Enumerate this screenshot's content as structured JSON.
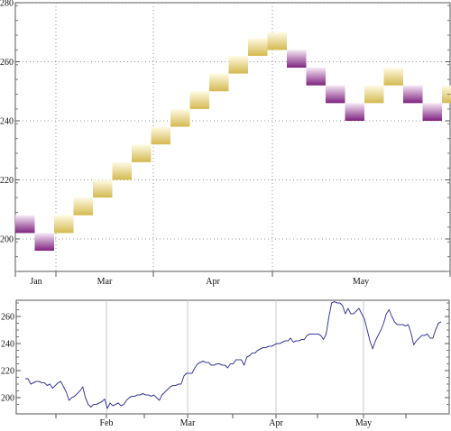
{
  "chart_data": [
    {
      "type": "renko",
      "yticks": [
        200,
        220,
        240,
        260,
        280
      ],
      "ylim": [
        189,
        280
      ],
      "month_labels": [
        "Jan",
        "Mar",
        "Apr",
        "May"
      ],
      "bricks": [
        {
          "dir": "down",
          "low": 202,
          "high": 208
        },
        {
          "dir": "down",
          "low": 196,
          "high": 202
        },
        {
          "dir": "up",
          "low": 202,
          "high": 208
        },
        {
          "dir": "up",
          "low": 208,
          "high": 214
        },
        {
          "dir": "up",
          "low": 214,
          "high": 220
        },
        {
          "dir": "up",
          "low": 220,
          "high": 226
        },
        {
          "dir": "up",
          "low": 226,
          "high": 232
        },
        {
          "dir": "up",
          "low": 232,
          "high": 238
        },
        {
          "dir": "up",
          "low": 238,
          "high": 244
        },
        {
          "dir": "up",
          "low": 244,
          "high": 250
        },
        {
          "dir": "up",
          "low": 250,
          "high": 256
        },
        {
          "dir": "up",
          "low": 256,
          "high": 262
        },
        {
          "dir": "up",
          "low": 262,
          "high": 268
        },
        {
          "dir": "up",
          "low": 264,
          "high": 270
        },
        {
          "dir": "down",
          "low": 258,
          "high": 264
        },
        {
          "dir": "down",
          "low": 252,
          "high": 258
        },
        {
          "dir": "down",
          "low": 246,
          "high": 252
        },
        {
          "dir": "down",
          "low": 240,
          "high": 246
        },
        {
          "dir": "up",
          "low": 246,
          "high": 252
        },
        {
          "dir": "up",
          "low": 252,
          "high": 258
        },
        {
          "dir": "down",
          "low": 246,
          "high": 252
        },
        {
          "dir": "down",
          "low": 240,
          "high": 246
        },
        {
          "dir": "up",
          "low": 246,
          "high": 252
        }
      ],
      "colors": {
        "up": "#d9c15f",
        "down": "#8b2f8b"
      }
    },
    {
      "type": "line",
      "yticks": [
        200,
        220,
        240,
        260
      ],
      "ylim": [
        188,
        272
      ],
      "month_labels": [
        "Feb",
        "Mar",
        "Apr",
        "May"
      ],
      "line_color": "#3b3b9e",
      "values": [
        214,
        214,
        210,
        211,
        212,
        212,
        211,
        211,
        209,
        210,
        207,
        209,
        211,
        212,
        208,
        204,
        198,
        200,
        201,
        203,
        205,
        208,
        200,
        195,
        193,
        195,
        195,
        196,
        197,
        199,
        192,
        196,
        194,
        195,
        196,
        194,
        195,
        198,
        200,
        201,
        201,
        202,
        202,
        203,
        202,
        202,
        201,
        202,
        200,
        198,
        202,
        204,
        206,
        208,
        209,
        209,
        210,
        210,
        216,
        218,
        218,
        218,
        222,
        225,
        226,
        227,
        226,
        226,
        224,
        224,
        225,
        225,
        224,
        224,
        222,
        225,
        225,
        228,
        228,
        228,
        224,
        230,
        231,
        233,
        233,
        235,
        236,
        237,
        237,
        238,
        238,
        239,
        240,
        240,
        241,
        242,
        242,
        244,
        241,
        242,
        242,
        243,
        243,
        246,
        247,
        247,
        247,
        247,
        246,
        243,
        247,
        260,
        270,
        271,
        270,
        270,
        268,
        262,
        266,
        262,
        262,
        264,
        266,
        262,
        258,
        250,
        242,
        236,
        242,
        246,
        250,
        255,
        262,
        265,
        260,
        256,
        254,
        254,
        254,
        253,
        254,
        248,
        239,
        242,
        244,
        246,
        246,
        247,
        244,
        244,
        250,
        255,
        256
      ]
    }
  ]
}
